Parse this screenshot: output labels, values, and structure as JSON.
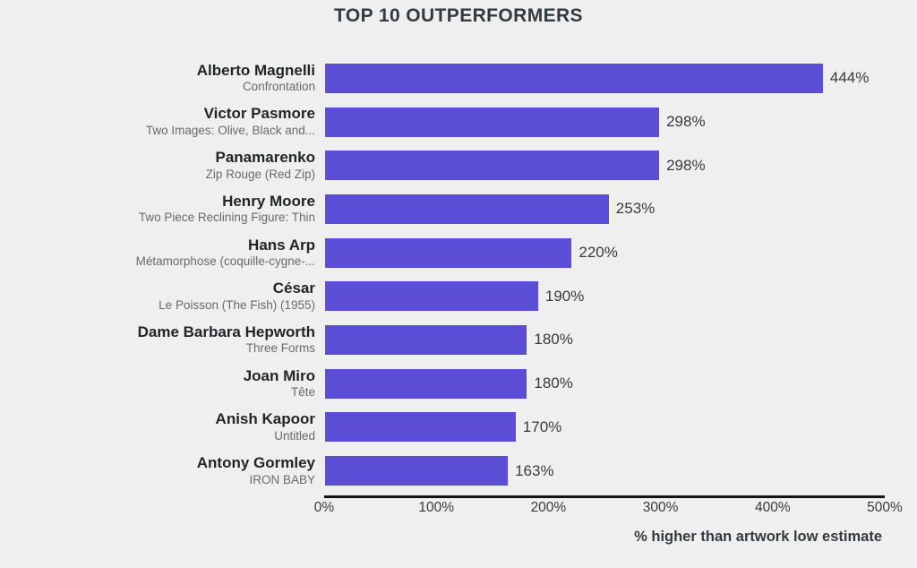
{
  "page": {
    "background": "#efefef"
  },
  "chart_data": {
    "type": "bar",
    "orientation": "horizontal",
    "title": "TOP 10 OUTPERFORMERS",
    "xlabel": "% higher than artwork low estimate",
    "xlim": [
      0,
      500
    ],
    "x_ticks": [
      "0%",
      "100%",
      "200%",
      "300%",
      "400%",
      "500%"
    ],
    "grid": "off",
    "legend": "none",
    "bar_color": "#5b4ed6",
    "rows": [
      {
        "artist": "Alberto Magnelli",
        "artwork": "Confrontation",
        "value": 444,
        "value_label": "444%"
      },
      {
        "artist": "Victor Pasmore",
        "artwork": "Two Images: Olive, Black and...",
        "value": 298,
        "value_label": "298%"
      },
      {
        "artist": "Panamarenko",
        "artwork": "Zip Rouge (Red Zip)",
        "value": 298,
        "value_label": "298%"
      },
      {
        "artist": "Henry Moore",
        "artwork": "Two Piece Reclining Figure: Thin",
        "value": 253,
        "value_label": "253%"
      },
      {
        "artist": "Hans Arp",
        "artwork": "Métamorphose (coquille-cygne-...",
        "value": 220,
        "value_label": "220%"
      },
      {
        "artist": "César",
        "artwork": "Le Poisson (The Fish) (1955)",
        "value": 190,
        "value_label": "190%"
      },
      {
        "artist": "Dame Barbara Hepworth",
        "artwork": "Three Forms",
        "value": 180,
        "value_label": "180%"
      },
      {
        "artist": "Joan Miro",
        "artwork": "Tête",
        "value": 180,
        "value_label": "180%"
      },
      {
        "artist": "Anish Kapoor",
        "artwork": "Untitled",
        "value": 170,
        "value_label": "170%"
      },
      {
        "artist": "Antony Gormley",
        "artwork": "IRON BABY",
        "value": 163,
        "value_label": "163%"
      }
    ]
  }
}
